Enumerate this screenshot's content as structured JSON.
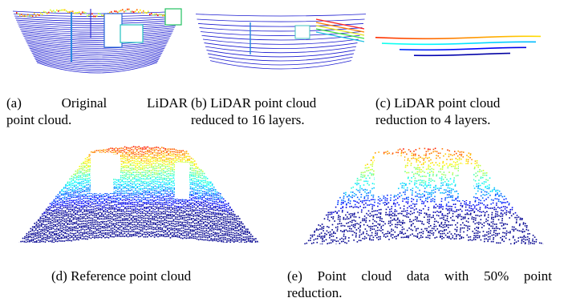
{
  "figure": {
    "panels": [
      {
        "id": "a",
        "caption_line1": "(a)   Original   LiDAR",
        "caption_line2": "point cloud.",
        "layers": 64
      },
      {
        "id": "b",
        "caption_line1": "(b) LiDAR point cloud",
        "caption_line2": "reduced to 16 layers.",
        "layers": 16
      },
      {
        "id": "c",
        "caption_line1": "(c) LiDAR point cloud",
        "caption_line2": "reduction to 4 layers.",
        "layers": 4
      },
      {
        "id": "d",
        "caption_line1": "(d) Reference point cloud",
        "caption_line2": "",
        "density": 1.0
      },
      {
        "id": "e",
        "caption_line1": "(e) Point cloud data with 50% point",
        "caption_line2": "reduction.",
        "density": 0.5
      }
    ],
    "colormap": [
      "#00008f",
      "#0000ff",
      "#0080ff",
      "#00ffff",
      "#80ff80",
      "#ffff00",
      "#ff8000",
      "#ff0000"
    ]
  }
}
